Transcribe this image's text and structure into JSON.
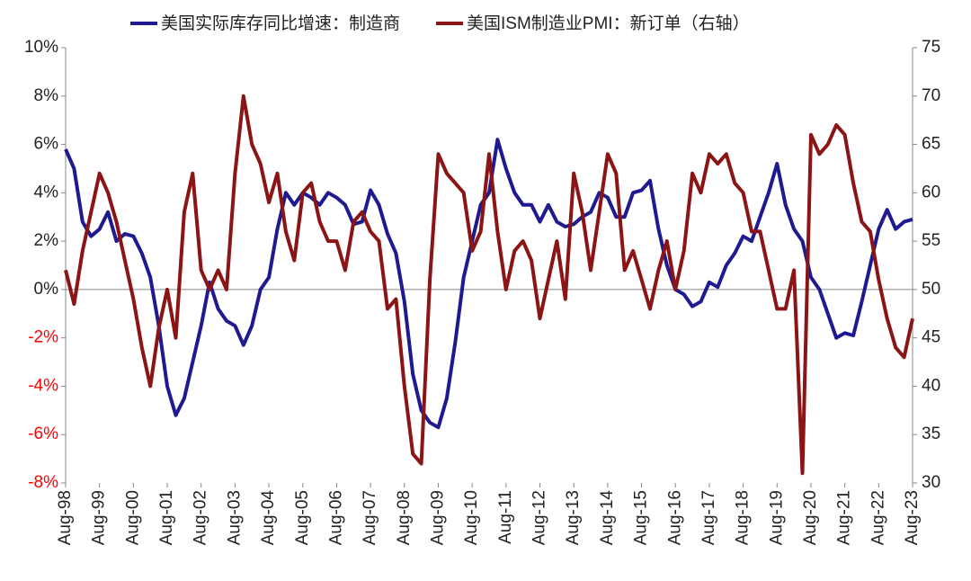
{
  "chart_data": {
    "type": "line",
    "categories": [
      "Aug-98",
      null,
      null,
      null,
      "Aug-99",
      null,
      null,
      null,
      "Aug-00",
      null,
      null,
      null,
      "Aug-01",
      null,
      null,
      null,
      "Aug-02",
      null,
      null,
      null,
      "Aug-03",
      null,
      null,
      null,
      "Aug-04",
      null,
      null,
      null,
      "Aug-05",
      null,
      null,
      null,
      "Aug-06",
      null,
      null,
      null,
      "Aug-07",
      null,
      null,
      null,
      "Aug-08",
      null,
      null,
      null,
      "Aug-09",
      null,
      null,
      null,
      "Aug-10",
      null,
      null,
      null,
      "Aug-11",
      null,
      null,
      null,
      "Aug-12",
      null,
      null,
      null,
      "Aug-13",
      null,
      null,
      null,
      "Aug-14",
      null,
      null,
      null,
      "Aug-15",
      null,
      null,
      null,
      "Aug-16",
      null,
      null,
      null,
      "Aug-17",
      null,
      null,
      null,
      "Aug-18",
      null,
      null,
      null,
      "Aug-19",
      null,
      null,
      null,
      "Aug-20",
      null,
      null,
      null,
      "Aug-21",
      null,
      null,
      null,
      "Aug-22",
      null,
      null,
      null,
      "Aug-23"
    ],
    "series": [
      {
        "name": "美国实际库存同比增速：制造商",
        "color": "#1f1a8f",
        "axis": "y",
        "values": [
          5.8,
          5.0,
          2.8,
          2.2,
          2.5,
          3.2,
          2.0,
          2.3,
          2.2,
          1.5,
          0.5,
          -1.5,
          -4.0,
          -5.2,
          -4.5,
          -3.0,
          -1.5,
          0.3,
          -0.8,
          -1.3,
          -1.5,
          -2.3,
          -1.5,
          0.0,
          0.5,
          2.5,
          4.0,
          3.5,
          4.0,
          3.8,
          3.5,
          4.0,
          3.8,
          3.5,
          2.7,
          2.8,
          4.1,
          3.5,
          2.3,
          1.5,
          -0.5,
          -3.5,
          -5.0,
          -5.5,
          -5.7,
          -4.5,
          -2.2,
          0.5,
          2.0,
          3.5,
          4.0,
          6.2,
          5.0,
          4.0,
          3.5,
          3.5,
          2.8,
          3.5,
          2.8,
          2.6,
          2.7,
          3.0,
          3.2,
          4.0,
          3.8,
          3.0,
          3.0,
          4.0,
          4.1,
          4.5,
          2.5,
          1.0,
          0.0,
          -0.2,
          -0.7,
          -0.5,
          0.3,
          0.1,
          1.0,
          1.5,
          2.2,
          2.0,
          3.0,
          4.0,
          5.2,
          3.5,
          2.5,
          2.0,
          0.5,
          0.0,
          -1.0,
          -2.0,
          -1.8,
          -1.9,
          -0.5,
          1.0,
          2.5,
          3.3,
          2.5,
          2.8,
          2.9
        ]
      },
      {
        "name": "美国ISM制造业PMI：新订单（右轴）",
        "color": "#8b1414",
        "axis": "y2",
        "values": [
          52,
          48.5,
          54,
          58,
          62,
          60,
          57,
          53,
          49,
          44,
          40,
          46,
          50,
          45,
          58,
          62,
          52,
          50,
          52,
          50,
          62,
          70,
          65,
          63,
          59,
          62,
          56,
          53,
          60,
          61,
          57,
          55,
          55,
          52,
          57,
          58,
          56,
          55,
          48,
          49,
          40,
          33,
          32,
          51,
          64,
          62,
          61,
          60,
          54,
          56,
          64,
          56,
          50,
          54,
          55,
          53,
          47,
          51,
          55,
          49,
          62,
          58,
          52,
          58,
          64,
          62,
          52,
          54,
          51,
          48,
          52,
          55,
          50,
          54,
          62,
          60,
          64,
          63,
          64,
          61,
          60,
          56,
          56,
          52,
          48,
          48,
          52,
          31,
          66,
          64,
          65,
          67,
          66,
          61,
          57,
          56,
          51,
          47,
          44,
          43,
          47
        ]
      }
    ],
    "ylim": [
      -8,
      10
    ],
    "yticks": [
      {
        "value": -8,
        "label": "-8%"
      },
      {
        "value": -6,
        "label": "-6%"
      },
      {
        "value": -4,
        "label": "-4%"
      },
      {
        "value": -2,
        "label": "-2%"
      },
      {
        "value": 0,
        "label": "0%"
      },
      {
        "value": 2,
        "label": "2%"
      },
      {
        "value": 4,
        "label": "4%"
      },
      {
        "value": 6,
        "label": "6%"
      },
      {
        "value": 8,
        "label": "8%"
      },
      {
        "value": 10,
        "label": "10%"
      }
    ],
    "y2lim": [
      30,
      75
    ],
    "y2ticks": [
      30,
      35,
      40,
      45,
      50,
      55,
      60,
      65,
      70,
      75
    ],
    "negative_tick_color": "#ff0000",
    "legend": "top"
  }
}
